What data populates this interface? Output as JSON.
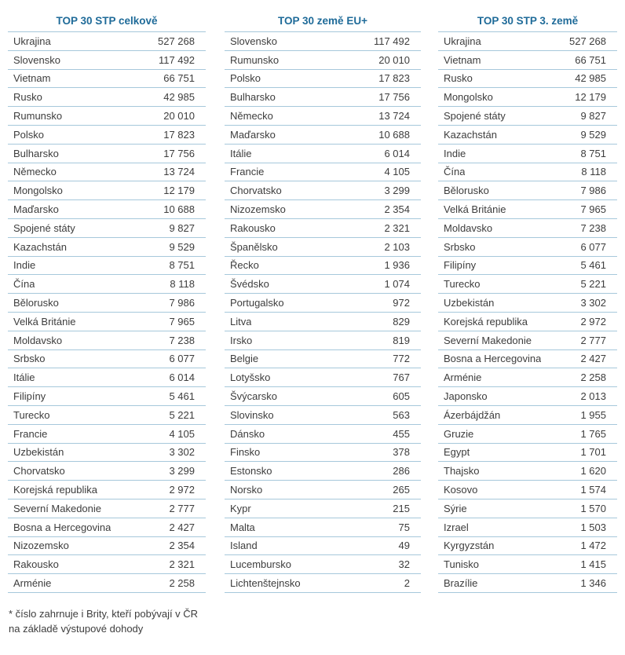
{
  "colors": {
    "title_text": "#1f6b99",
    "row_separator": "#a6c8db",
    "body_text": "#3d3d3d"
  },
  "tables": [
    {
      "title": "TOP 30 STP celkově",
      "rows": [
        [
          "Ukrajina",
          "527 268"
        ],
        [
          "Slovensko",
          "117 492"
        ],
        [
          "Vietnam",
          "66 751"
        ],
        [
          "Rusko",
          "42 985"
        ],
        [
          "Rumunsko",
          "20 010"
        ],
        [
          "Polsko",
          "17 823"
        ],
        [
          "Bulharsko",
          "17 756"
        ],
        [
          "Německo",
          "13 724"
        ],
        [
          "Mongolsko",
          "12 179"
        ],
        [
          "Maďarsko",
          "10 688"
        ],
        [
          "Spojené státy",
          "9 827"
        ],
        [
          "Kazachstán",
          "9 529"
        ],
        [
          "Indie",
          "8 751"
        ],
        [
          "Čína",
          "8 118"
        ],
        [
          "Bělorusko",
          "7 986"
        ],
        [
          "Velká Británie",
          "7 965"
        ],
        [
          "Moldavsko",
          "7 238"
        ],
        [
          "Srbsko",
          "6 077"
        ],
        [
          "Itálie",
          "6 014"
        ],
        [
          "Filipíny",
          "5 461"
        ],
        [
          "Turecko",
          "5 221"
        ],
        [
          "Francie",
          "4 105"
        ],
        [
          "Uzbekistán",
          "3 302"
        ],
        [
          "Chorvatsko",
          "3 299"
        ],
        [
          "Korejská republika",
          "2 972"
        ],
        [
          "Severní Makedonie",
          "2 777"
        ],
        [
          "Bosna a Hercegovina",
          "2 427"
        ],
        [
          "Nizozemsko",
          "2 354"
        ],
        [
          "Rakousko",
          "2 321"
        ],
        [
          "Arménie",
          "2 258"
        ]
      ]
    },
    {
      "title": "TOP 30 země EU+",
      "rows": [
        [
          "Slovensko",
          "117 492"
        ],
        [
          "Rumunsko",
          "20 010"
        ],
        [
          "Polsko",
          "17 823"
        ],
        [
          "Bulharsko",
          "17 756"
        ],
        [
          "Německo",
          "13 724"
        ],
        [
          "Maďarsko",
          "10 688"
        ],
        [
          "Itálie",
          "6 014"
        ],
        [
          "Francie",
          "4 105"
        ],
        [
          "Chorvatsko",
          "3 299"
        ],
        [
          "Nizozemsko",
          "2 354"
        ],
        [
          "Rakousko",
          "2 321"
        ],
        [
          "Španělsko",
          "2 103"
        ],
        [
          "Řecko",
          "1 936"
        ],
        [
          "Švédsko",
          "1 074"
        ],
        [
          "Portugalsko",
          "972"
        ],
        [
          "Litva",
          "829"
        ],
        [
          "Irsko",
          "819"
        ],
        [
          "Belgie",
          "772"
        ],
        [
          "Lotyšsko",
          "767"
        ],
        [
          "Švýcarsko",
          "605"
        ],
        [
          "Slovinsko",
          "563"
        ],
        [
          "Dánsko",
          "455"
        ],
        [
          "Finsko",
          "378"
        ],
        [
          "Estonsko",
          "286"
        ],
        [
          "Norsko",
          "265"
        ],
        [
          "Kypr",
          "215"
        ],
        [
          "Malta",
          "75"
        ],
        [
          "Island",
          "49"
        ],
        [
          "Lucembursko",
          "32"
        ],
        [
          "Lichtenštejnsko",
          "2"
        ]
      ]
    },
    {
      "title": "TOP 30 STP 3. země",
      "rows": [
        [
          "Ukrajina",
          "527 268"
        ],
        [
          "Vietnam",
          "66 751"
        ],
        [
          "Rusko",
          "42 985"
        ],
        [
          "Mongolsko",
          "12 179"
        ],
        [
          "Spojené státy",
          "9 827"
        ],
        [
          "Kazachstán",
          "9 529"
        ],
        [
          "Indie",
          "8 751"
        ],
        [
          "Čína",
          "8 118"
        ],
        [
          "Bělorusko",
          "7 986"
        ],
        [
          "Velká Británie",
          "7 965"
        ],
        [
          "Moldavsko",
          "7 238"
        ],
        [
          "Srbsko",
          "6 077"
        ],
        [
          "Filipíny",
          "5 461"
        ],
        [
          "Turecko",
          "5 221"
        ],
        [
          "Uzbekistán",
          "3 302"
        ],
        [
          "Korejská republika",
          "2 972"
        ],
        [
          "Severní Makedonie",
          "2 777"
        ],
        [
          "Bosna a Hercegovina",
          "2 427"
        ],
        [
          "Arménie",
          "2 258"
        ],
        [
          "Japonsko",
          "2 013"
        ],
        [
          "Ázerbájdžán",
          "1 955"
        ],
        [
          "Gruzie",
          "1 765"
        ],
        [
          "Egypt",
          "1 701"
        ],
        [
          "Thajsko",
          "1 620"
        ],
        [
          "Kosovo",
          "1 574"
        ],
        [
          "Sýrie",
          "1 570"
        ],
        [
          "Izrael",
          "1 503"
        ],
        [
          "Kyrgyzstán",
          "1 472"
        ],
        [
          "Tunisko",
          "1 415"
        ],
        [
          "Brazílie",
          "1 346"
        ]
      ]
    }
  ],
  "footnote": {
    "line1": "* číslo zahrnuje i Brity, kteří pobývají v ČR",
    "line2": "na základě výstupové dohody"
  }
}
